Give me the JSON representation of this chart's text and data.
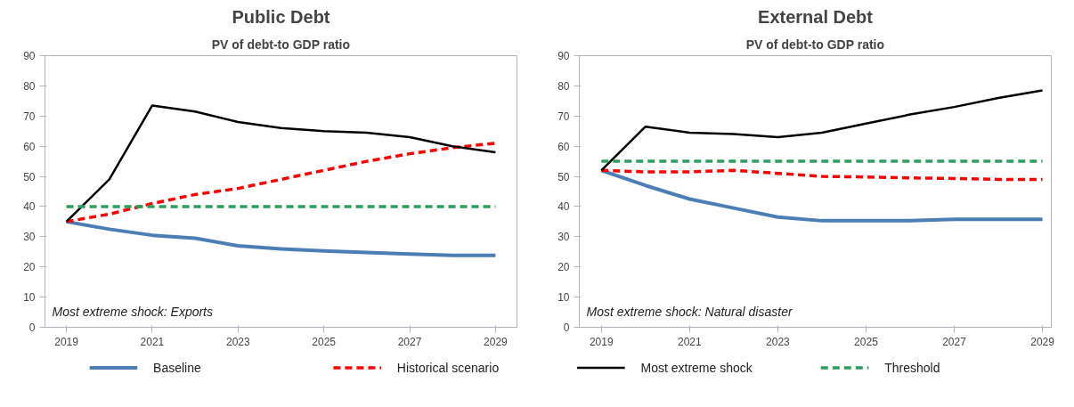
{
  "chart_data": [
    {
      "type": "line",
      "title": "Public Debt",
      "subtitle": "PV of debt-to GDP ratio",
      "x": [
        2019,
        2020,
        2021,
        2022,
        2023,
        2024,
        2025,
        2026,
        2027,
        2028,
        2029
      ],
      "xlim": [
        2018.5,
        2029.5
      ],
      "xticks": [
        2019,
        2021,
        2023,
        2025,
        2027,
        2029
      ],
      "ylim": [
        0,
        90
      ],
      "yticks": [
        0,
        10,
        20,
        30,
        40,
        50,
        60,
        70,
        80,
        90
      ],
      "grid": false,
      "legend": "bottom",
      "annotations": [
        "Most extreme shock: Exports"
      ],
      "series": [
        {
          "name": "Baseline",
          "color": "#4a7eb5",
          "line_style": "solid",
          "values": [
            35,
            32.5,
            30.5,
            29.5,
            27,
            26,
            25.3,
            24.8,
            24.3,
            23.8,
            23.8
          ]
        },
        {
          "name": "Historical scenario",
          "color": "#ff0000",
          "line_style": "dashed",
          "values": [
            35,
            37.5,
            41,
            44,
            46,
            49,
            52,
            55,
            57.5,
            59.5,
            61
          ]
        },
        {
          "name": "Most extreme shock",
          "color": "#000000",
          "line_style": "solid",
          "values": [
            35,
            49,
            73.5,
            71.5,
            68,
            66,
            65,
            64.5,
            63,
            60,
            58
          ]
        },
        {
          "name": "Threshold",
          "color": "#2e9e5e",
          "line_style": "dashed",
          "values": [
            40,
            40,
            40,
            40,
            40,
            40,
            40,
            40,
            40,
            40,
            40
          ]
        }
      ]
    },
    {
      "type": "line",
      "title": "External Debt",
      "subtitle": "PV of debt-to GDP ratio",
      "x": [
        2019,
        2020,
        2021,
        2022,
        2023,
        2024,
        2025,
        2026,
        2027,
        2028,
        2029
      ],
      "xlim": [
        2018.5,
        2029.2
      ],
      "xticks": [
        2019,
        2021,
        2023,
        2025,
        2027,
        2029
      ],
      "ylim": [
        0,
        90
      ],
      "yticks": [
        0,
        10,
        20,
        30,
        40,
        50,
        60,
        70,
        80,
        90
      ],
      "grid": false,
      "annotations": [
        "Most extreme shock: Natural disaster"
      ],
      "series": [
        {
          "color": "#4a7eb5",
          "line_style": "solid",
          "values": [
            52,
            47,
            42.5,
            39.5,
            36.5,
            35.3,
            35.3,
            35.3,
            35.8,
            35.8,
            35.8
          ]
        },
        {
          "color": "#ff0000",
          "line_style": "dashed",
          "values": [
            52,
            51.5,
            51.5,
            52,
            51,
            50,
            49.8,
            49.5,
            49.3,
            49,
            49
          ]
        },
        {
          "color": "#000000",
          "line_style": "solid",
          "values": [
            52,
            66.5,
            64.5,
            64,
            63,
            64.5,
            67.5,
            70.5,
            73,
            76,
            78.5
          ]
        },
        {
          "color": "#2e9e5e",
          "line_style": "dashed",
          "values": [
            55,
            55,
            55,
            55,
            55,
            55,
            55,
            55,
            55,
            55,
            55
          ]
        }
      ]
    }
  ]
}
